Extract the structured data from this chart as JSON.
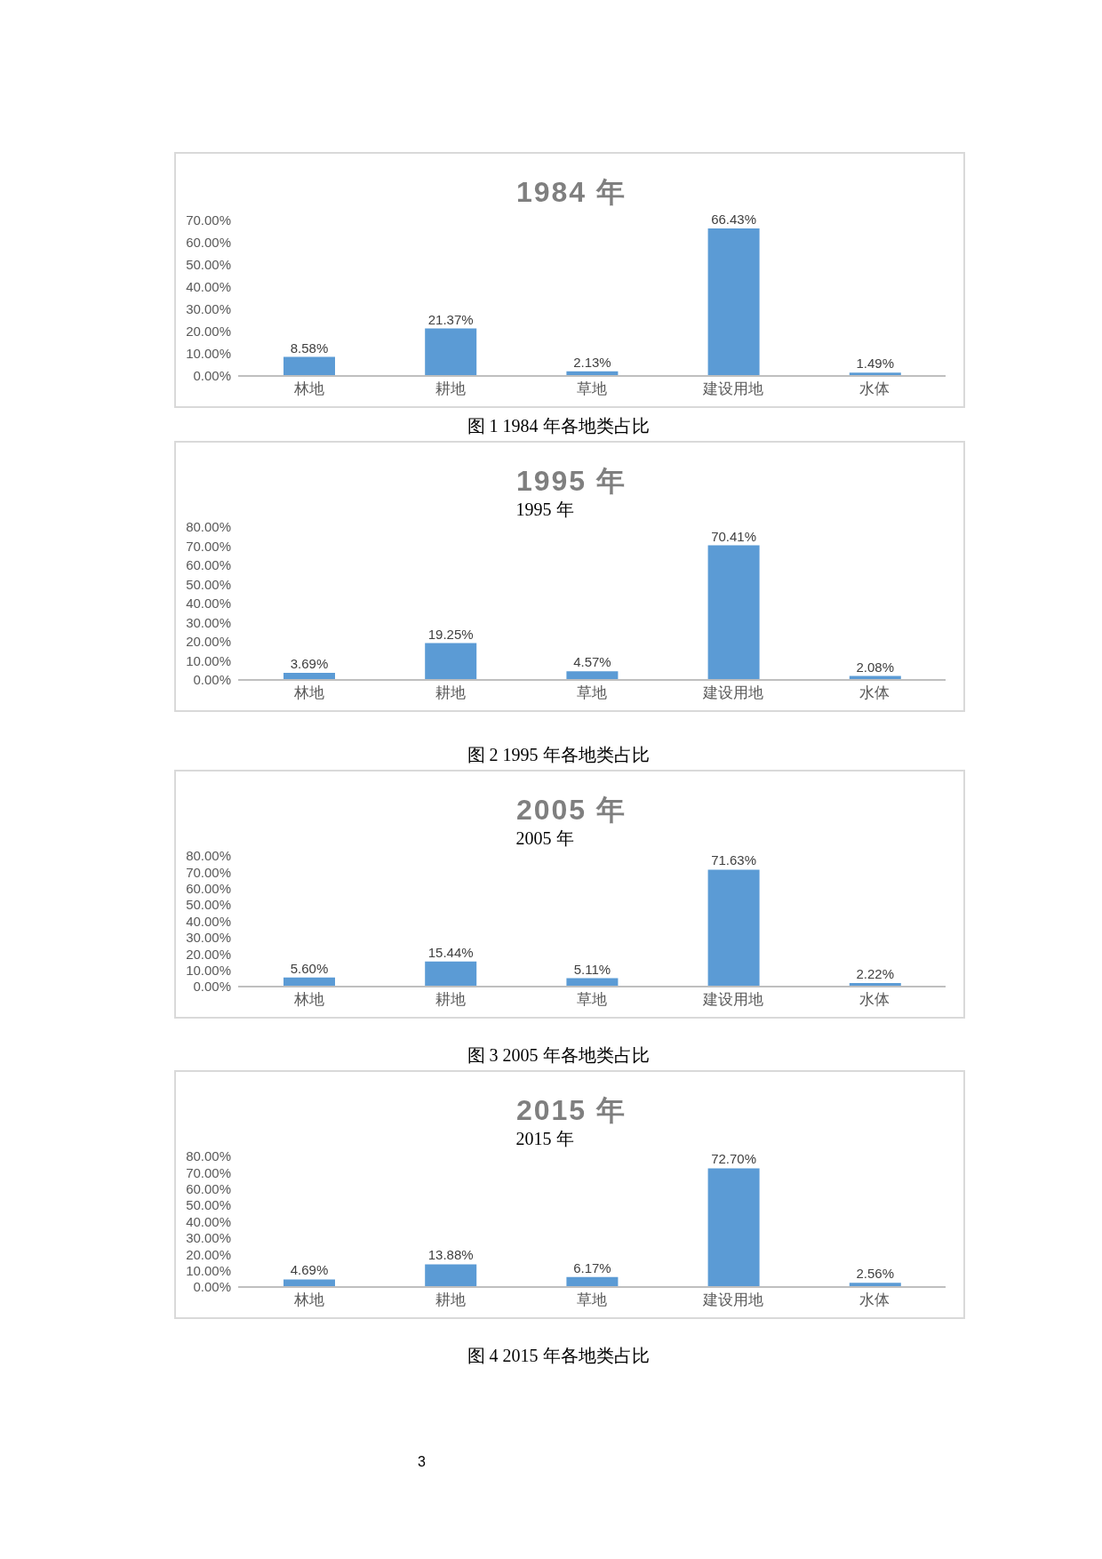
{
  "chart_data": [
    {
      "type": "bar",
      "title": "1984 年",
      "categories": [
        "林地",
        "耕地",
        "草地",
        "建设用地",
        "水体"
      ],
      "values": [
        8.58,
        21.37,
        2.13,
        66.43,
        1.49
      ],
      "value_labels": [
        "8.58%",
        "21.37%",
        "2.13%",
        "66.43%",
        "1.49%"
      ],
      "color": "#5b9bd5",
      "ylim": [
        0,
        70
      ],
      "yticks": [
        {
          "value": 0,
          "label": "0.00%"
        },
        {
          "value": 10,
          "label": "10.00%"
        },
        {
          "value": 20,
          "label": "20.00%"
        },
        {
          "value": 30,
          "label": "30.00%"
        },
        {
          "value": 40,
          "label": "40.00%"
        },
        {
          "value": 50,
          "label": "50.00%"
        },
        {
          "value": 60,
          "label": "60.00%"
        },
        {
          "value": 70,
          "label": "70.00%"
        }
      ],
      "grid": false,
      "legend": false,
      "annotations": [
        "图 1 1984 年各地类占比"
      ]
    },
    {
      "type": "bar",
      "title": "1995 年",
      "subtitle": "1995 年",
      "categories": [
        "林地",
        "耕地",
        "草地",
        "建设用地",
        "水体"
      ],
      "values": [
        3.69,
        19.25,
        4.57,
        70.41,
        2.08
      ],
      "value_labels": [
        "3.69%",
        "19.25%",
        "4.57%",
        "70.41%",
        "2.08%"
      ],
      "color": "#5b9bd5",
      "ylim": [
        0,
        80
      ],
      "yticks": [
        {
          "value": 0,
          "label": "0.00%"
        },
        {
          "value": 10,
          "label": "10.00%"
        },
        {
          "value": 20,
          "label": "20.00%"
        },
        {
          "value": 30,
          "label": "30.00%"
        },
        {
          "value": 40,
          "label": "40.00%"
        },
        {
          "value": 50,
          "label": "50.00%"
        },
        {
          "value": 60,
          "label": "60.00%"
        },
        {
          "value": 70,
          "label": "70.00%"
        },
        {
          "value": 80,
          "label": "80.00%"
        }
      ],
      "grid": false,
      "legend": false,
      "annotations": [
        "图 2 1995 年各地类占比"
      ]
    },
    {
      "type": "bar",
      "title": "2005 年",
      "subtitle": "2005 年",
      "categories": [
        "林地",
        "耕地",
        "草地",
        "建设用地",
        "水体"
      ],
      "values": [
        5.6,
        15.44,
        5.11,
        71.63,
        2.22
      ],
      "value_labels": [
        "5.60%",
        "15.44%",
        "5.11%",
        "71.63%",
        "2.22%"
      ],
      "color": "#5b9bd5",
      "ylim": [
        0,
        80
      ],
      "yticks": [
        {
          "value": 0,
          "label": "0.00%"
        },
        {
          "value": 10,
          "label": "10.00%"
        },
        {
          "value": 20,
          "label": "20.00%"
        },
        {
          "value": 30,
          "label": "30.00%"
        },
        {
          "value": 40,
          "label": "40.00%"
        },
        {
          "value": 50,
          "label": "50.00%"
        },
        {
          "value": 60,
          "label": "60.00%"
        },
        {
          "value": 70,
          "label": "70.00%"
        },
        {
          "value": 80,
          "label": "80.00%"
        }
      ],
      "grid": false,
      "legend": false,
      "annotations": [
        "图 3 2005 年各地类占比"
      ]
    },
    {
      "type": "bar",
      "title": "2015 年",
      "subtitle": "2015 年",
      "categories": [
        "林地",
        "耕地",
        "草地",
        "建设用地",
        "水体"
      ],
      "values": [
        4.69,
        13.88,
        6.17,
        72.7,
        2.56
      ],
      "value_labels": [
        "4.69%",
        "13.88%",
        "6.17%",
        "72.70%",
        "2.56%"
      ],
      "color": "#5b9bd5",
      "ylim": [
        0,
        80
      ],
      "yticks": [
        {
          "value": 0,
          "label": "0.00%"
        },
        {
          "value": 10,
          "label": "10.00%"
        },
        {
          "value": 20,
          "label": "20.00%"
        },
        {
          "value": 30,
          "label": "30.00%"
        },
        {
          "value": 40,
          "label": "40.00%"
        },
        {
          "value": 50,
          "label": "50.00%"
        },
        {
          "value": 60,
          "label": "60.00%"
        },
        {
          "value": 70,
          "label": "70.00%"
        },
        {
          "value": 80,
          "label": "80.00%"
        }
      ],
      "grid": false,
      "legend": false,
      "annotations": [
        "图 4 2015 年各地类占比",
        "3"
      ]
    }
  ]
}
